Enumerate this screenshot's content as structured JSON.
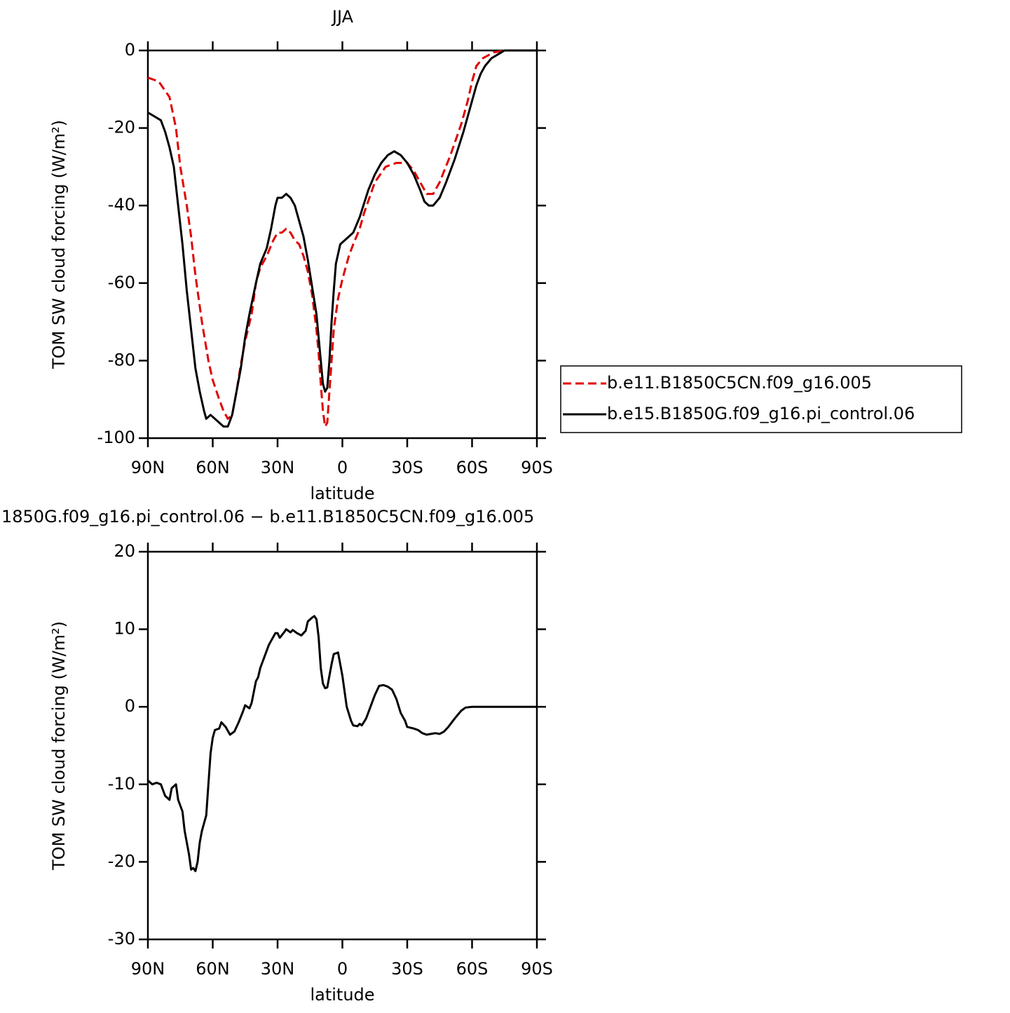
{
  "chart_data": [
    {
      "type": "line",
      "title": "JJA",
      "xlabel": "latitude",
      "ylabel": "TOM SW cloud forcing (W/m²)",
      "xlim": [
        90,
        -90
      ],
      "ylim": [
        -100,
        0
      ],
      "xticks": [
        {
          "value": 90,
          "label": "90N"
        },
        {
          "value": 60,
          "label": "60N"
        },
        {
          "value": 30,
          "label": "30N"
        },
        0,
        {
          "value": -30,
          "label": "30S"
        },
        {
          "value": -60,
          "label": "60S"
        },
        {
          "value": -90,
          "label": "90S"
        }
      ],
      "yticks": [
        -100,
        -80,
        -60,
        -40,
        -20,
        0
      ],
      "legend": "right",
      "series": [
        {
          "name": "b.e11.B1850C5CN.f09_g16.005",
          "color": "#e00000",
          "linestyle": "dashed",
          "x": [
            90,
            85,
            80,
            77,
            75,
            72,
            70,
            68,
            65,
            62,
            60,
            57,
            55,
            53,
            51,
            49,
            47,
            45,
            42,
            40,
            38,
            35,
            32,
            30,
            28,
            26,
            24,
            22,
            20,
            18,
            16,
            14,
            12,
            11,
            10,
            9,
            8,
            7,
            6,
            5,
            4,
            2,
            0,
            -3,
            -5,
            -8,
            -10,
            -15,
            -20,
            -25,
            -30,
            -33,
            -36,
            -39,
            -42,
            -45,
            -50,
            -55,
            -58,
            -60,
            -62,
            -65,
            -70,
            -75,
            -80,
            -90
          ],
          "values": [
            -7,
            -8,
            -12,
            -20,
            -30,
            -40,
            -48,
            -58,
            -70,
            -80,
            -85,
            -90,
            -93,
            -95,
            -94,
            -88,
            -81,
            -75,
            -68,
            -60,
            -56,
            -53,
            -49,
            -47,
            -47,
            -46,
            -47,
            -49,
            -50,
            -53,
            -57,
            -63,
            -72,
            -78,
            -86,
            -93,
            -97,
            -96,
            -88,
            -80,
            -72,
            -64,
            -59,
            -53,
            -50,
            -46,
            -42,
            -34,
            -30,
            -29,
            -29,
            -31,
            -34,
            -37,
            -37,
            -34,
            -27,
            -19,
            -13,
            -8,
            -4,
            -2,
            -0.5,
            0,
            0,
            0
          ]
        },
        {
          "name": "b.e15.B1850G.f09_g16.pi_control.06",
          "color": "#000000",
          "linestyle": "solid",
          "x": [
            90,
            87,
            84,
            82,
            80,
            78,
            76,
            74,
            72,
            70,
            68,
            66,
            64,
            63,
            61,
            59,
            57,
            55,
            53,
            51,
            49,
            47,
            45,
            43,
            40,
            38,
            35,
            33,
            31,
            30,
            28,
            26,
            24,
            22,
            20,
            18,
            16,
            14,
            12,
            11,
            10,
            9,
            8,
            7,
            6,
            5,
            4,
            3,
            1,
            -1,
            -5,
            -8,
            -12,
            -15,
            -18,
            -21,
            -24,
            -27,
            -30,
            -33,
            -36,
            -38,
            -40,
            -42,
            -45,
            -48,
            -52,
            -56,
            -59,
            -62,
            -64,
            -66,
            -69,
            -72,
            -75,
            -80,
            -90
          ],
          "values": [
            -16,
            -17,
            -18,
            -21,
            -25,
            -30,
            -40,
            -50,
            -62,
            -72,
            -82,
            -88,
            -93,
            -95,
            -94,
            -95,
            -96,
            -97,
            -97,
            -94,
            -88,
            -82,
            -74,
            -68,
            -60,
            -55,
            -51,
            -46,
            -40,
            -38,
            -38,
            -37,
            -38,
            -40,
            -44,
            -48,
            -54,
            -61,
            -68,
            -74,
            -80,
            -86,
            -88,
            -87,
            -80,
            -70,
            -62,
            -55,
            -50,
            -49,
            -47,
            -43,
            -36,
            -32,
            -29,
            -27,
            -26,
            -27,
            -29,
            -32,
            -36,
            -39,
            -40,
            -40,
            -38,
            -34,
            -28,
            -21,
            -15,
            -9,
            -6,
            -4,
            -2,
            -1,
            0,
            0,
            0
          ]
        }
      ]
    },
    {
      "type": "line",
      "title": "1850G.f09_g16.pi_control.06 − b.e11.B1850C5CN.f09_g16.005",
      "xlabel": "latitude",
      "ylabel": "TOM SW cloud forcing (W/m²)",
      "xlim": [
        90,
        -90
      ],
      "ylim": [
        -30,
        20
      ],
      "xticks": [
        {
          "value": 90,
          "label": "90N"
        },
        {
          "value": 60,
          "label": "60N"
        },
        {
          "value": 30,
          "label": "30N"
        },
        0,
        {
          "value": -30,
          "label": "30S"
        },
        {
          "value": -60,
          "label": "60S"
        },
        {
          "value": -90,
          "label": "90S"
        }
      ],
      "yticks": [
        -30,
        -20,
        -10,
        0,
        10,
        20
      ],
      "series": [
        {
          "color": "#000000",
          "linestyle": "solid",
          "x": [
            90,
            88,
            86,
            84,
            82,
            80,
            79,
            77,
            76,
            74,
            73,
            71,
            70,
            69,
            68,
            67,
            66,
            65,
            63,
            62,
            61,
            60,
            59,
            57,
            56,
            54,
            52,
            50,
            48,
            46,
            45,
            43,
            42,
            40,
            39,
            38,
            36,
            34,
            33,
            31,
            30,
            29,
            27,
            26,
            24,
            23,
            21,
            19,
            17,
            16,
            14,
            13,
            12,
            11,
            10,
            9,
            8,
            7,
            6,
            5,
            4,
            2,
            0,
            -2,
            -4,
            -5,
            -7,
            -8,
            -9,
            -11,
            -13,
            -15,
            -17,
            -19,
            -21,
            -23,
            -25,
            -27,
            -29,
            -30,
            -33,
            -35,
            -37,
            -39,
            -41,
            -43,
            -45,
            -47,
            -49,
            -52,
            -55,
            -57,
            -60,
            -70,
            -90
          ],
          "values": [
            -9.5,
            -10,
            -9.8,
            -10,
            -11.5,
            -12,
            -10.5,
            -10,
            -12,
            -13.5,
            -16,
            -19,
            -21,
            -20.8,
            -21.2,
            -20,
            -17.5,
            -16,
            -14,
            -10,
            -6,
            -4,
            -3,
            -2.8,
            -2,
            -2.6,
            -3.6,
            -3.2,
            -2,
            -0.6,
            0.2,
            -0.2,
            0.5,
            3.3,
            3.8,
            5,
            6.5,
            8,
            8.5,
            9.5,
            9.5,
            8.9,
            9.6,
            10,
            9.6,
            9.9,
            9.5,
            9.2,
            9.8,
            11,
            11.5,
            11.7,
            11.3,
            9,
            5,
            3,
            2.4,
            2.5,
            4,
            5.5,
            6.8,
            7,
            4,
            0,
            -1.8,
            -2.4,
            -2.5,
            -2.2,
            -2.4,
            -1.5,
            0,
            1.5,
            2.7,
            2.8,
            2.6,
            2.2,
            1,
            -0.8,
            -1.8,
            -2.6,
            -2.8,
            -3,
            -3.4,
            -3.6,
            -3.5,
            -3.4,
            -3.5,
            -3.2,
            -2.6,
            -1.5,
            -0.5,
            -0.1,
            0,
            0,
            0
          ]
        }
      ]
    }
  ]
}
